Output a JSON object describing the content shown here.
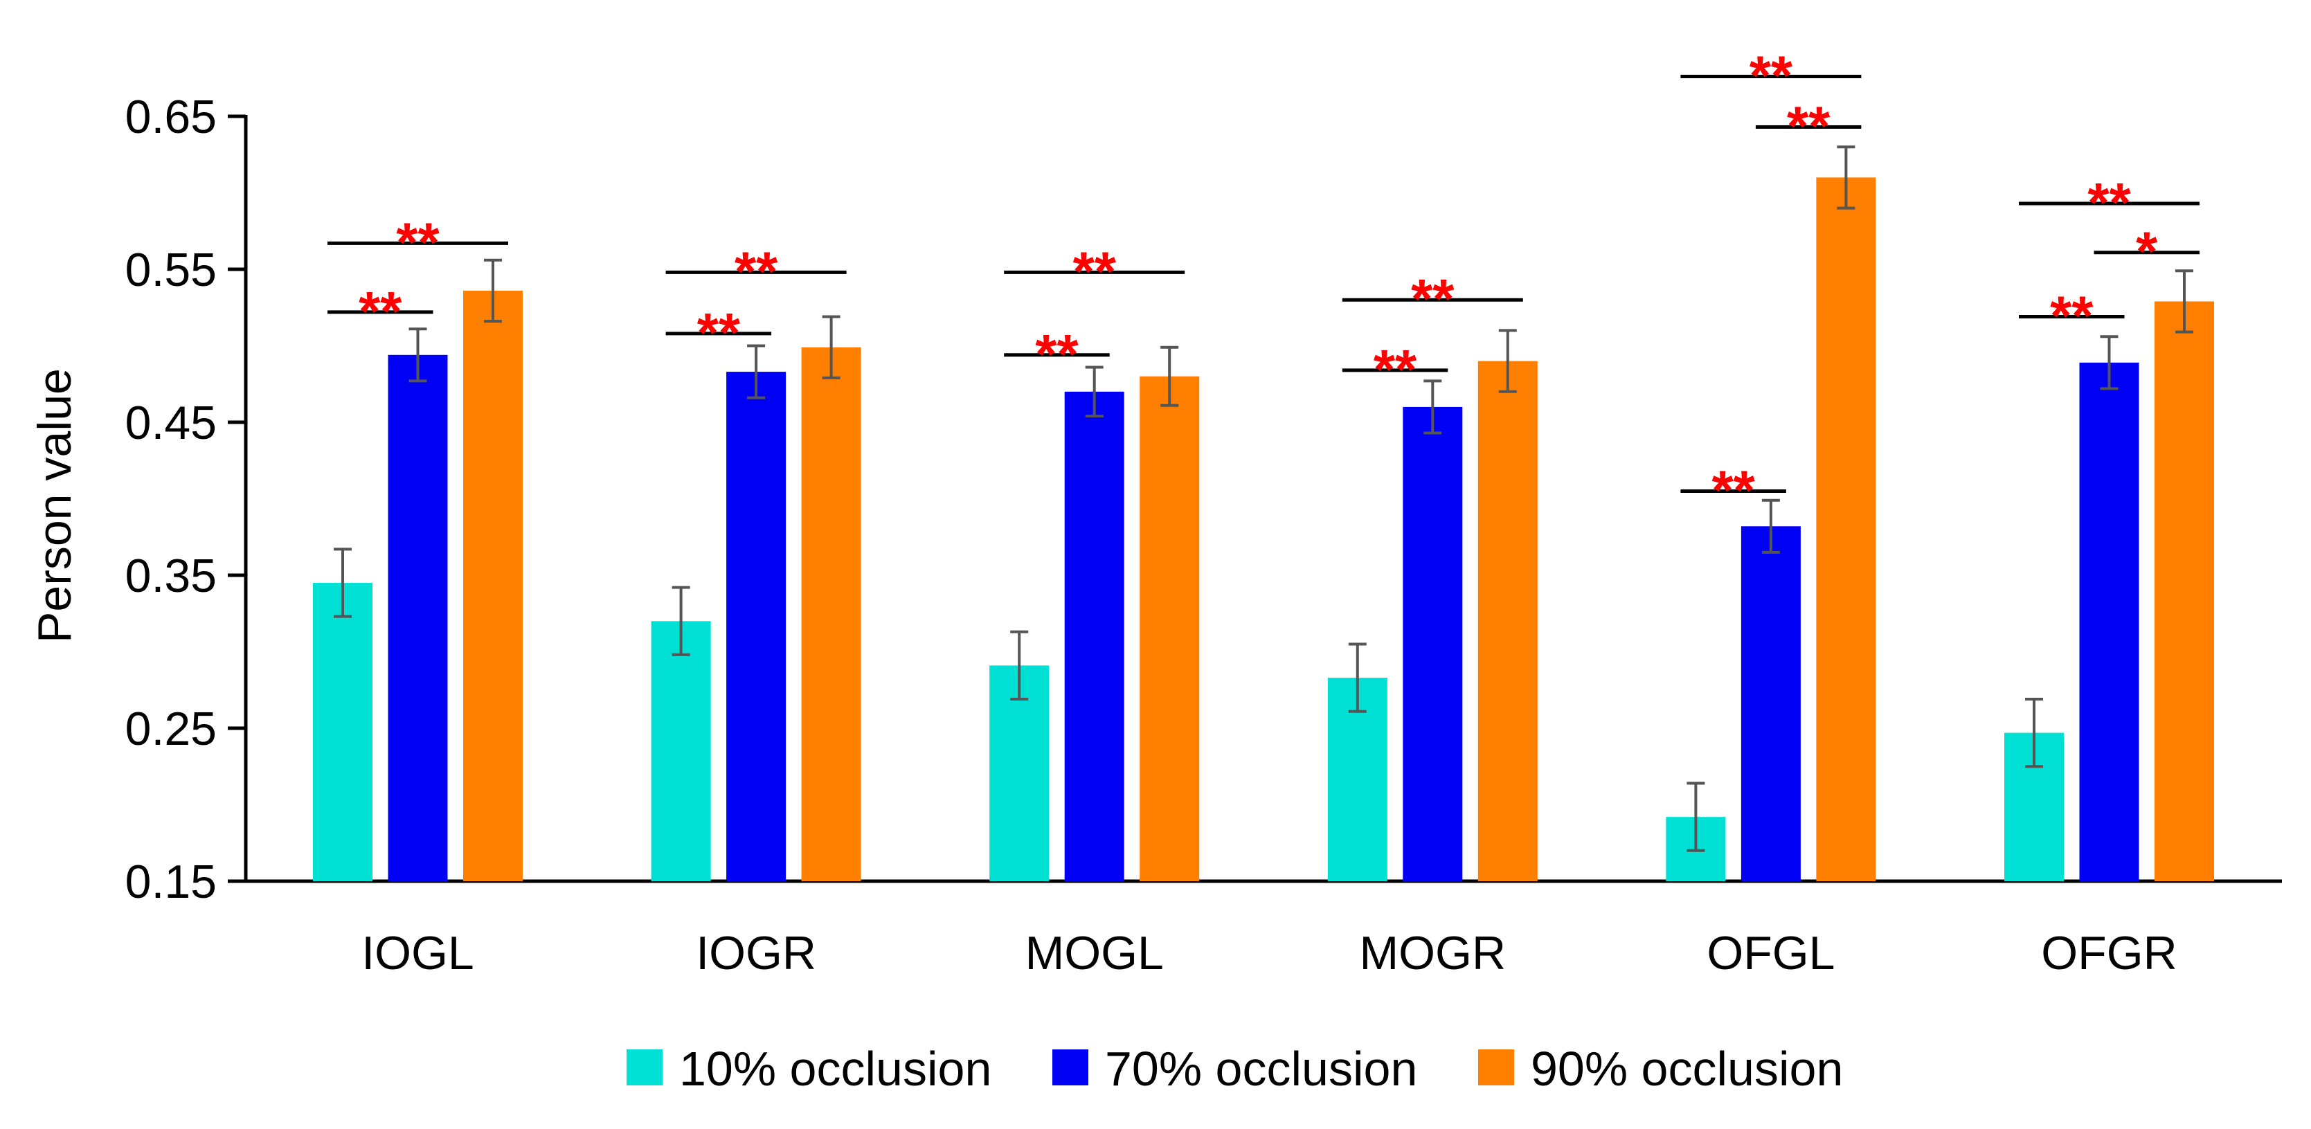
{
  "chart_data": {
    "type": "bar",
    "title": "",
    "xlabel": "",
    "ylabel": "Person value",
    "ylim": [
      0.15,
      0.65
    ],
    "yticks": [
      "0.15",
      "0.25",
      "0.35",
      "0.45",
      "0.55",
      "0.65"
    ],
    "categories": [
      "IOGL",
      "IOGR",
      "MOGL",
      "MOGR",
      "OFGL",
      "OFGR"
    ],
    "series": [
      {
        "name": "10% occlusion",
        "color": "#00E0D4",
        "values": [
          0.345,
          0.32,
          0.291,
          0.283,
          0.192,
          0.247
        ],
        "errors": [
          0.022,
          0.022,
          0.022,
          0.022,
          0.022,
          0.022
        ]
      },
      {
        "name": "70% occlusion",
        "color": "#0000F5",
        "values": [
          0.494,
          0.483,
          0.47,
          0.46,
          0.382,
          0.489
        ],
        "errors": [
          0.017,
          0.017,
          0.016,
          0.017,
          0.017,
          0.017
        ]
      },
      {
        "name": "90% occlusion",
        "color": "#FF7F00",
        "values": [
          0.536,
          0.499,
          0.48,
          0.49,
          0.61,
          0.529
        ],
        "errors": [
          0.02,
          0.02,
          0.019,
          0.02,
          0.02,
          0.02
        ]
      }
    ],
    "significance": [
      {
        "category": 0,
        "from": 0,
        "to": 1,
        "y": 0.522,
        "label": "**"
      },
      {
        "category": 0,
        "from": 0,
        "to": 2,
        "y": 0.567,
        "label": "**"
      },
      {
        "category": 1,
        "from": 0,
        "to": 1,
        "y": 0.508,
        "label": "**"
      },
      {
        "category": 1,
        "from": 0,
        "to": 2,
        "y": 0.548,
        "label": "**"
      },
      {
        "category": 2,
        "from": 0,
        "to": 1,
        "y": 0.494,
        "label": "**"
      },
      {
        "category": 2,
        "from": 0,
        "to": 2,
        "y": 0.548,
        "label": "**"
      },
      {
        "category": 3,
        "from": 0,
        "to": 1,
        "y": 0.484,
        "label": "**"
      },
      {
        "category": 3,
        "from": 0,
        "to": 2,
        "y": 0.53,
        "label": "**"
      },
      {
        "category": 4,
        "from": 0,
        "to": 1,
        "y": 0.405,
        "label": "**"
      },
      {
        "category": 4,
        "from": 0,
        "to": 2,
        "y": 0.676,
        "label": "**"
      },
      {
        "category": 4,
        "from": 1,
        "to": 2,
        "y": 0.643,
        "label": "**"
      },
      {
        "category": 5,
        "from": 0,
        "to": 1,
        "y": 0.519,
        "label": "**"
      },
      {
        "category": 5,
        "from": 0,
        "to": 2,
        "y": 0.593,
        "label": "**"
      },
      {
        "category": 5,
        "from": 1,
        "to": 2,
        "y": 0.561,
        "label": "*"
      }
    ],
    "legend_position": "bottom-center",
    "grid": false
  }
}
